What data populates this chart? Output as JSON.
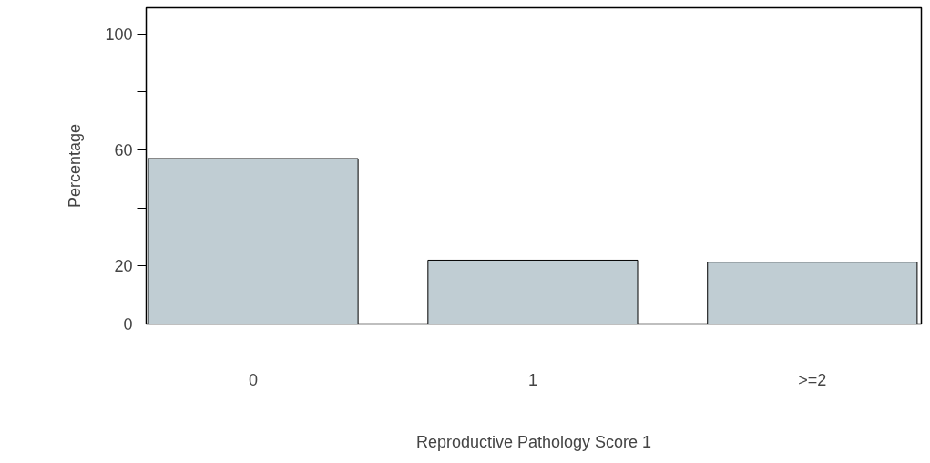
{
  "chart_data": {
    "type": "bar",
    "xlabel": "Reproductive Pathology Score 1",
    "ylabel": "Percentage",
    "categories": [
      "0",
      "1",
      ">=2"
    ],
    "values": [
      57,
      22,
      21.3
    ],
    "color": "#c0cdd3",
    "ylim": [
      0,
      109
    ],
    "yticks": [
      0,
      20,
      {
        "value": 40,
        "label": null
      },
      60,
      {
        "value": 80,
        "label": null
      },
      100
    ],
    "grid": false
  }
}
